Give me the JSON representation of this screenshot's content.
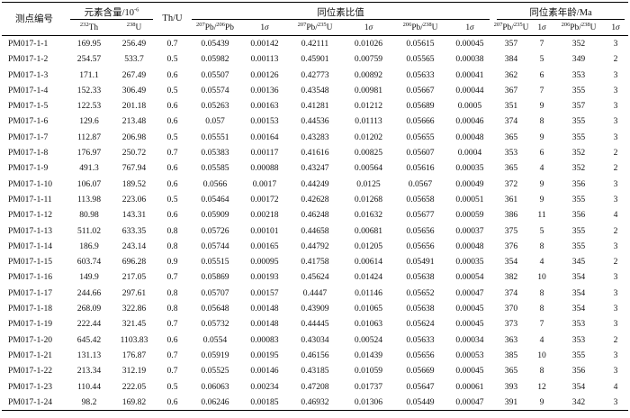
{
  "header": {
    "sample_label": "测点编号",
    "group_content": "元素含量/10",
    "group_content_exp": "-6",
    "group_ratio": "同位素比值",
    "group_age": "同位素年龄/Ma",
    "th_mass": "232",
    "th_sym": "Th",
    "u_mass": "238",
    "u_sym": "U",
    "thu": "Th/U",
    "pb207": "207",
    "pb206": "206",
    "pb": "Pb",
    "u235": "235",
    "u238": "238",
    "sigma_one": "1",
    "sigma_sym": "σ",
    "slash": "/"
  },
  "rows": [
    [
      "PM017-1-1",
      "169.95",
      "256.49",
      "0.7",
      "0.05439",
      "0.00142",
      "0.42111",
      "0.01026",
      "0.05615",
      "0.00045",
      "357",
      "7",
      "352",
      "3"
    ],
    [
      "PM017-1-2",
      "254.57",
      "533.7",
      "0.5",
      "0.05982",
      "0.00113",
      "0.45901",
      "0.00759",
      "0.05565",
      "0.00038",
      "384",
      "5",
      "349",
      "2"
    ],
    [
      "PM017-1-3",
      "171.1",
      "267.49",
      "0.6",
      "0.05507",
      "0.00126",
      "0.42773",
      "0.00892",
      "0.05633",
      "0.00041",
      "362",
      "6",
      "353",
      "3"
    ],
    [
      "PM017-1-4",
      "152.33",
      "306.49",
      "0.5",
      "0.05574",
      "0.00136",
      "0.43548",
      "0.00981",
      "0.05667",
      "0.00044",
      "367",
      "7",
      "355",
      "3"
    ],
    [
      "PM017-1-5",
      "122.53",
      "201.18",
      "0.6",
      "0.05263",
      "0.00163",
      "0.41281",
      "0.01212",
      "0.05689",
      "0.0005",
      "351",
      "9",
      "357",
      "3"
    ],
    [
      "PM017-1-6",
      "129.6",
      "213.48",
      "0.6",
      "0.057",
      "0.00153",
      "0.44536",
      "0.01113",
      "0.05666",
      "0.00046",
      "374",
      "8",
      "355",
      "3"
    ],
    [
      "PM017-1-7",
      "112.87",
      "206.98",
      "0.5",
      "0.05551",
      "0.00164",
      "0.43283",
      "0.01202",
      "0.05655",
      "0.00048",
      "365",
      "9",
      "355",
      "3"
    ],
    [
      "PM017-1-8",
      "176.97",
      "250.72",
      "0.7",
      "0.05383",
      "0.00117",
      "0.41616",
      "0.00825",
      "0.05607",
      "0.0004",
      "353",
      "6",
      "352",
      "2"
    ],
    [
      "PM017-1-9",
      "491.3",
      "767.94",
      "0.6",
      "0.05585",
      "0.00088",
      "0.43247",
      "0.00564",
      "0.05616",
      "0.00035",
      "365",
      "4",
      "352",
      "2"
    ],
    [
      "PM017-1-10",
      "106.07",
      "189.52",
      "0.6",
      "0.0566",
      "0.0017",
      "0.44249",
      "0.0125",
      "0.0567",
      "0.00049",
      "372",
      "9",
      "356",
      "3"
    ],
    [
      "PM017-1-11",
      "113.98",
      "223.06",
      "0.5",
      "0.05464",
      "0.00172",
      "0.42628",
      "0.01268",
      "0.05658",
      "0.00051",
      "361",
      "9",
      "355",
      "3"
    ],
    [
      "PM017-1-12",
      "80.98",
      "143.31",
      "0.6",
      "0.05909",
      "0.00218",
      "0.46248",
      "0.01632",
      "0.05677",
      "0.00059",
      "386",
      "11",
      "356",
      "4"
    ],
    [
      "PM017-1-13",
      "511.02",
      "633.35",
      "0.8",
      "0.05726",
      "0.00101",
      "0.44658",
      "0.00681",
      "0.05656",
      "0.00037",
      "375",
      "5",
      "355",
      "2"
    ],
    [
      "PM017-1-14",
      "186.9",
      "243.14",
      "0.8",
      "0.05744",
      "0.00165",
      "0.44792",
      "0.01205",
      "0.05656",
      "0.00048",
      "376",
      "8",
      "355",
      "3"
    ],
    [
      "PM017-1-15",
      "603.74",
      "696.28",
      "0.9",
      "0.05515",
      "0.00095",
      "0.41758",
      "0.00614",
      "0.05491",
      "0.00035",
      "354",
      "4",
      "345",
      "2"
    ],
    [
      "PM017-1-16",
      "149.9",
      "217.05",
      "0.7",
      "0.05869",
      "0.00193",
      "0.45624",
      "0.01424",
      "0.05638",
      "0.00054",
      "382",
      "10",
      "354",
      "3"
    ],
    [
      "PM017-1-17",
      "244.66",
      "297.61",
      "0.8",
      "0.05707",
      "0.00157",
      "0.4447",
      "0.01146",
      "0.05652",
      "0.00047",
      "374",
      "8",
      "354",
      "3"
    ],
    [
      "PM017-1-18",
      "268.09",
      "322.86",
      "0.8",
      "0.05648",
      "0.00148",
      "0.43909",
      "0.01065",
      "0.05638",
      "0.00045",
      "370",
      "8",
      "354",
      "3"
    ],
    [
      "PM017-1-19",
      "222.44",
      "321.45",
      "0.7",
      "0.05732",
      "0.00148",
      "0.44445",
      "0.01063",
      "0.05624",
      "0.00045",
      "373",
      "7",
      "353",
      "3"
    ],
    [
      "PM017-1-20",
      "645.42",
      "1103.83",
      "0.6",
      "0.0554",
      "0.00083",
      "0.43034",
      "0.00524",
      "0.05633",
      "0.00034",
      "363",
      "4",
      "353",
      "2"
    ],
    [
      "PM017-1-21",
      "131.13",
      "176.87",
      "0.7",
      "0.05919",
      "0.00195",
      "0.46156",
      "0.01439",
      "0.05656",
      "0.00053",
      "385",
      "10",
      "355",
      "3"
    ],
    [
      "PM017-1-22",
      "213.34",
      "312.19",
      "0.7",
      "0.05525",
      "0.00146",
      "0.43185",
      "0.01059",
      "0.05669",
      "0.00045",
      "365",
      "8",
      "356",
      "3"
    ],
    [
      "PM017-1-23",
      "110.44",
      "222.05",
      "0.5",
      "0.06063",
      "0.00234",
      "0.47208",
      "0.01737",
      "0.05647",
      "0.00061",
      "393",
      "12",
      "354",
      "4"
    ],
    [
      "PM017-1-24",
      "98.2",
      "169.82",
      "0.6",
      "0.06246",
      "0.00185",
      "0.46932",
      "0.01306",
      "0.05449",
      "0.00047",
      "391",
      "9",
      "342",
      "3"
    ]
  ]
}
